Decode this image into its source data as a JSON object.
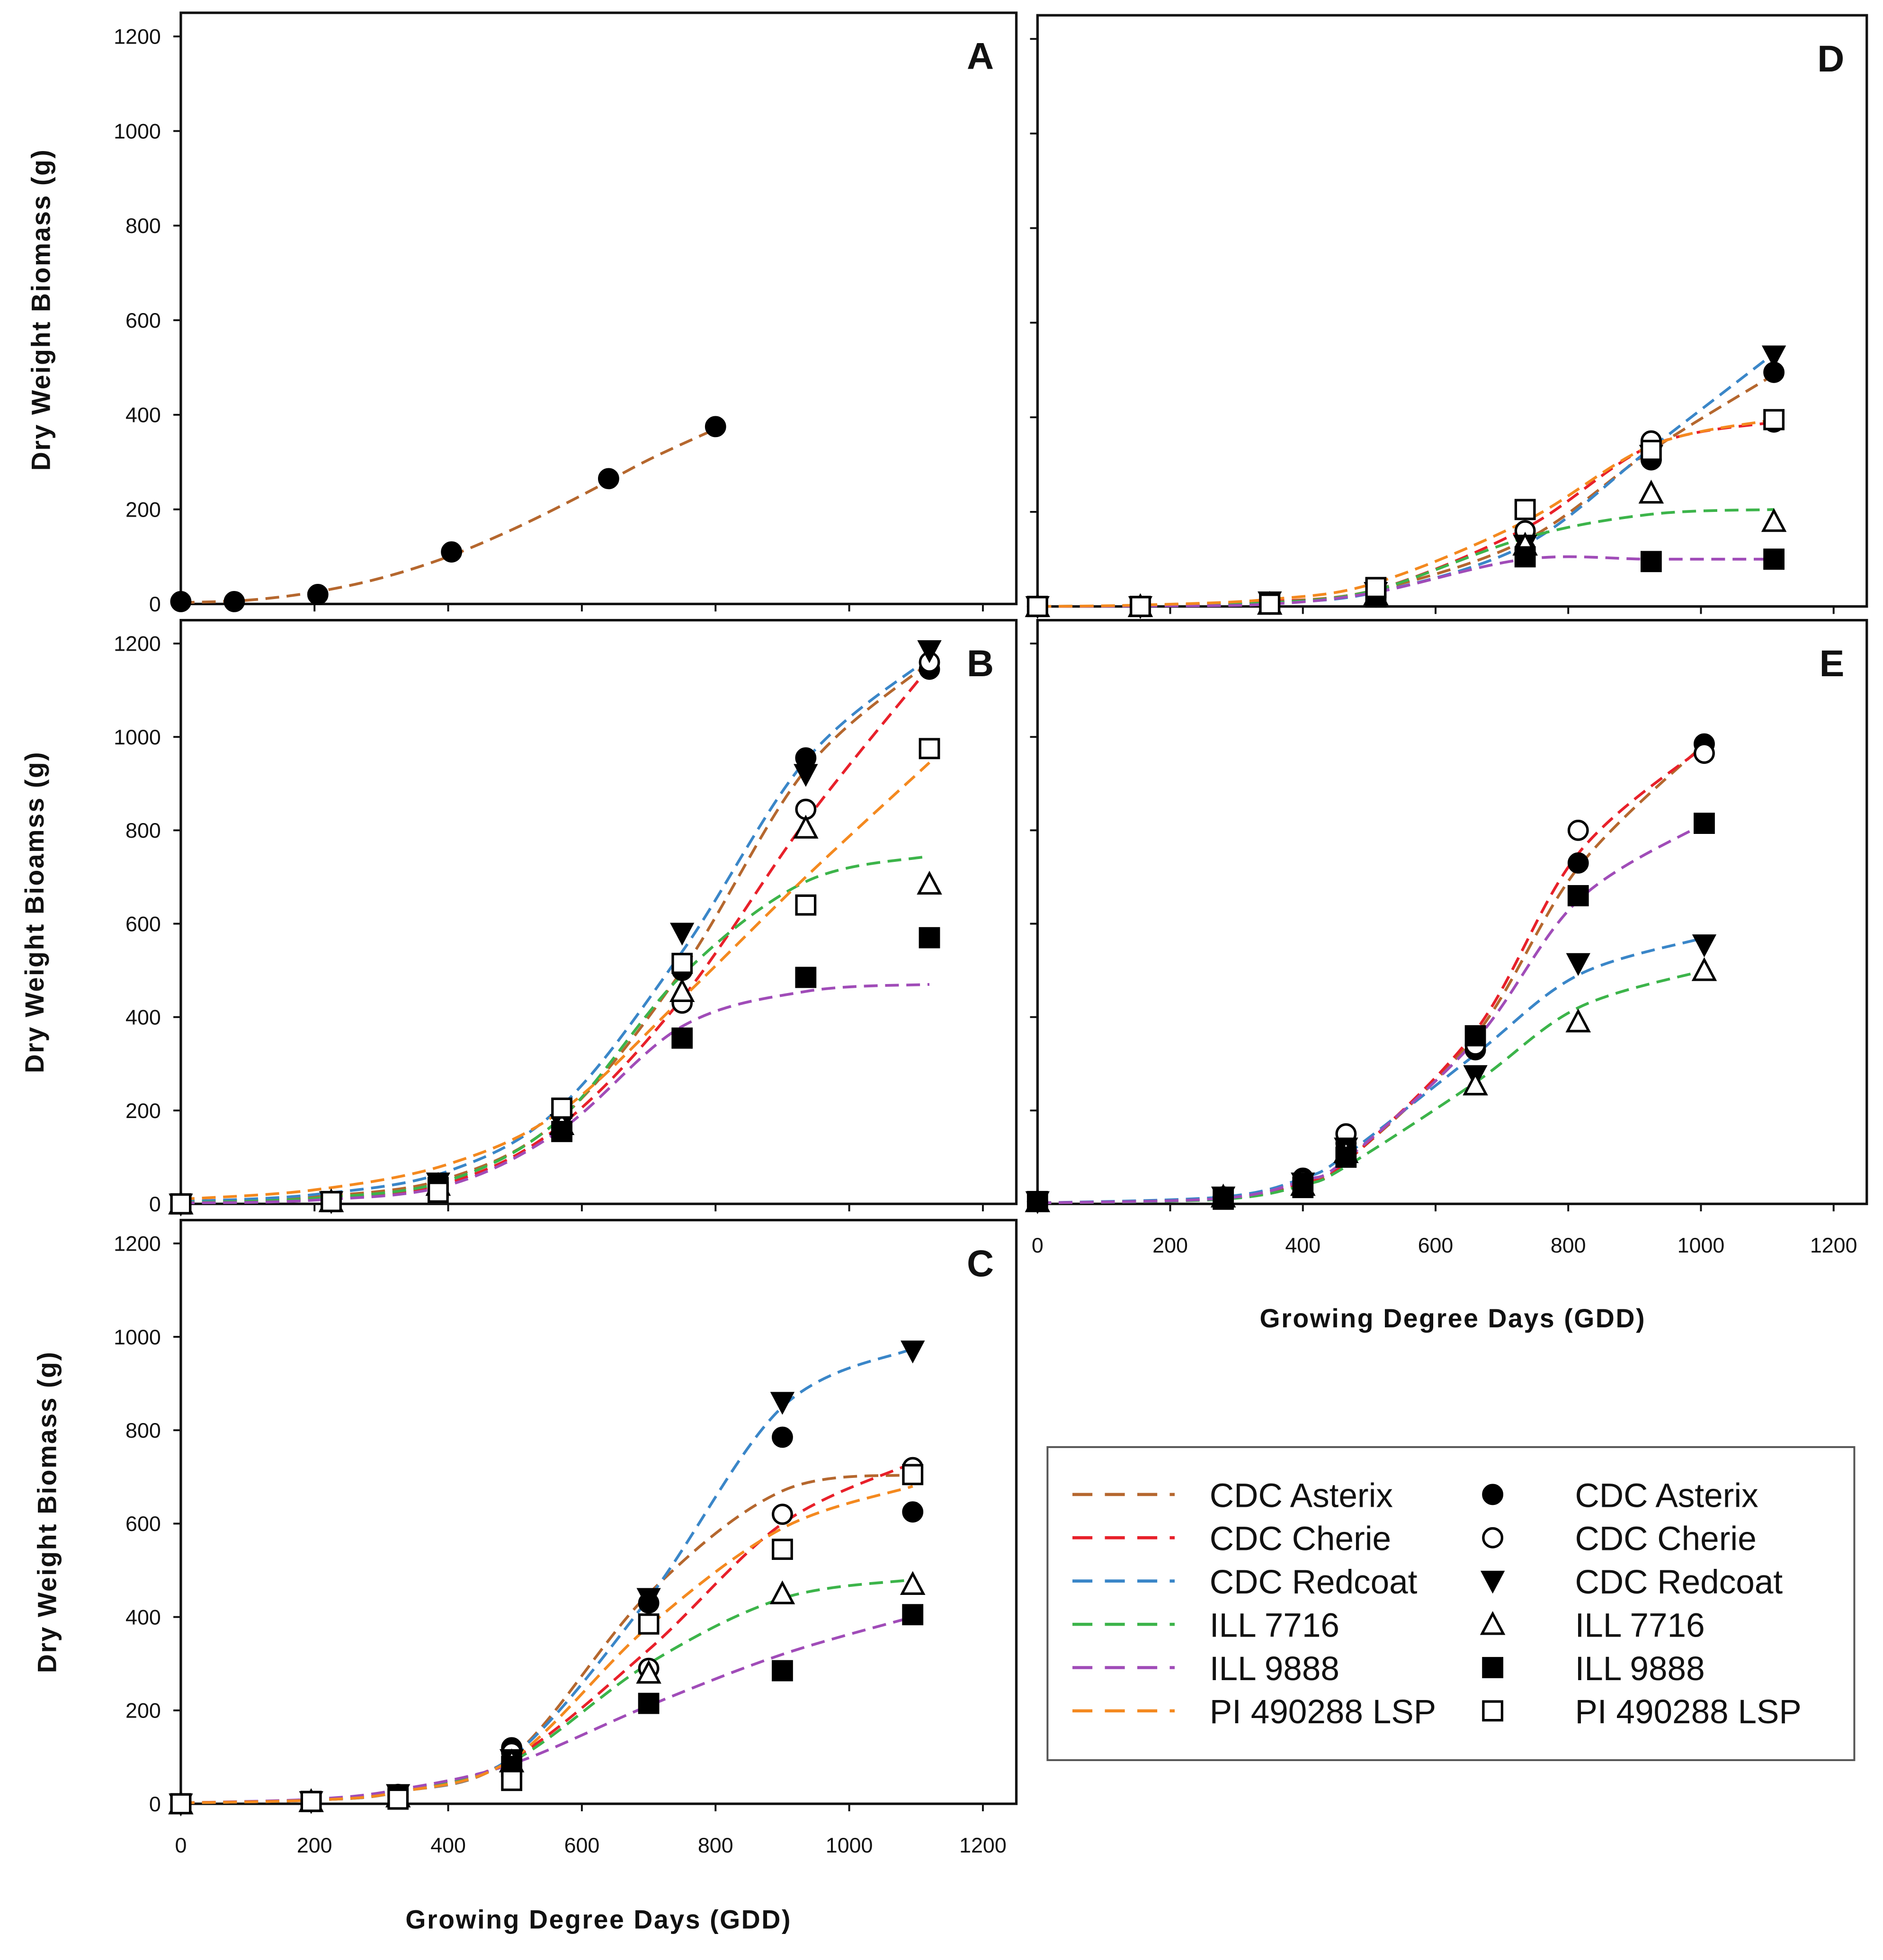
{
  "chart_data": {
    "type": "scatter",
    "title": "",
    "colors": {
      "CDC Asterix": "#b5672e",
      "CDC Cherie": "#e8202a",
      "CDC Redcoat": "#3a86c8",
      "ILL 7716": "#3cb44a",
      "ILL 9888": "#a04cb8",
      "PI 490288 LSP": "#f4891f"
    },
    "markers": {
      "CDC Asterix": "circle-filled",
      "CDC Cherie": "circle-open",
      "CDC Redcoat": "triangle-down-filled",
      "ILL 7716": "triangle-up-open",
      "ILL 9888": "square-filled",
      "PI 490288 LSP": "square-open"
    },
    "xlim": [
      0,
      1250
    ],
    "ylim": [
      0,
      1250
    ],
    "xticks": [
      0,
      200,
      400,
      600,
      800,
      1000,
      1200
    ],
    "yticks": [
      0,
      200,
      400,
      600,
      800,
      1000,
      1200
    ],
    "xlabel": "Growing Degree Days (GDD)",
    "ylabels": {
      "A": "Dry Weight Biomass (g)",
      "B": "Dry Weight Bioamss (g)",
      "C": "Dry Weight Biomass (g)"
    },
    "legend": {
      "position": "bottom-right",
      "line_entries": [
        "CDC Asterix",
        "CDC Cherie",
        "CDC Redcoat",
        "ILL 7716",
        "ILL 9888",
        "PI 490288 LSP"
      ],
      "marker_entries": [
        "CDC Asterix",
        "CDC Cherie",
        "CDC Redcoat",
        "ILL 7716",
        "ILL 9888",
        "PI 490288 LSP"
      ]
    },
    "panels": [
      {
        "label": "A",
        "x": [
          0,
          80,
          205,
          405,
          640,
          800
        ],
        "series": [
          {
            "name": "CDC Asterix",
            "points": [
              5,
              5,
              20,
              110,
              265,
              375
            ],
            "curve_x": [
              0,
              100,
              200,
              300,
              400,
              500,
              600,
              700,
              800
            ],
            "curve_y": [
              3,
              8,
              25,
              55,
              100,
              160,
              230,
              305,
              370
            ]
          }
        ]
      },
      {
        "label": "B",
        "x": [
          0,
          225,
          385,
          570,
          750,
          935,
          1120
        ],
        "curve_x": [
          0,
          200,
          400,
          570,
          750,
          935,
          1120
        ],
        "series": [
          {
            "name": "CDC Asterix",
            "points": [
              0,
              5,
              40,
              160,
              500,
              955,
              1145
            ],
            "curve_y": [
              5,
              15,
              55,
              185,
              500,
              930,
              1160
            ]
          },
          {
            "name": "CDC Cherie",
            "points": [
              0,
              5,
              40,
              165,
              430,
              845,
              1160
            ],
            "curve_y": [
              3,
              10,
              45,
              170,
              440,
              820,
              1150
            ]
          },
          {
            "name": "CDC Redcoat",
            "points": [
              0,
              5,
              45,
              170,
              580,
              920,
              1185
            ],
            "curve_y": [
              5,
              20,
              70,
              210,
              540,
              950,
              1170
            ]
          },
          {
            "name": "ILL 7716",
            "points": [
              0,
              5,
              40,
              170,
              455,
              805,
              685
            ],
            "curve_y": [
              3,
              12,
              50,
              185,
              490,
              690,
              745
            ]
          },
          {
            "name": "ILL 9888",
            "points": [
              0,
              5,
              35,
              155,
              355,
              485,
              570
            ],
            "curve_y": [
              2,
              8,
              40,
              160,
              380,
              455,
              470
            ]
          },
          {
            "name": "PI 490288 LSP",
            "points": [
              0,
              5,
              25,
              205,
              515,
              640,
              975
            ],
            "curve_y": [
              10,
              30,
              85,
              200,
              440,
              700,
              945
            ]
          }
        ]
      },
      {
        "label": "C",
        "x": [
          0,
          195,
          325,
          495,
          700,
          900,
          1095
        ],
        "curve_x": [
          0,
          200,
          325,
          495,
          700,
          900,
          1095
        ],
        "series": [
          {
            "name": "CDC Asterix",
            "points": [
              0,
              5,
              20,
              120,
              430,
              785,
              625
            ],
            "curve_y": [
              2,
              8,
              25,
              100,
              450,
              670,
              705
            ]
          },
          {
            "name": "CDC Cherie",
            "points": [
              0,
              5,
              15,
              110,
              290,
              620,
              720
            ],
            "curve_y": [
              2,
              8,
              25,
              95,
              330,
              600,
              730
            ]
          },
          {
            "name": "CDC Redcoat",
            "points": [
              0,
              5,
              20,
              95,
              440,
              860,
              970
            ],
            "curve_y": [
              2,
              8,
              25,
              100,
              440,
              850,
              975
            ]
          },
          {
            "name": "ILL 7716",
            "points": [
              0,
              5,
              15,
              90,
              280,
              450,
              470
            ],
            "curve_y": [
              2,
              8,
              25,
              90,
              300,
              440,
              480
            ]
          },
          {
            "name": "ILL 9888",
            "points": [
              0,
              5,
              15,
              80,
              215,
              285,
              405
            ],
            "curve_y": [
              2,
              10,
              30,
              85,
              210,
              320,
              400
            ]
          },
          {
            "name": "PI 490288 LSP",
            "points": [
              0,
              5,
              10,
              50,
              385,
              545,
              705
            ],
            "curve_y": [
              2,
              8,
              25,
              95,
              380,
              590,
              680
            ]
          }
        ]
      },
      {
        "label": "D",
        "x": [
          0,
          155,
          350,
          510,
          735,
          925,
          1110
        ],
        "curve_x": [
          0,
          155,
          350,
          510,
          735,
          925,
          1110
        ],
        "series": [
          {
            "name": "CDC Asterix",
            "points": [
              0,
              0,
              5,
              20,
              120,
              310,
              495
            ],
            "curve_y": [
              0,
              2,
              10,
              35,
              140,
              330,
              490
            ]
          },
          {
            "name": "CDC Cherie",
            "points": [
              0,
              0,
              5,
              25,
              160,
              350,
              390
            ],
            "curve_y": [
              0,
              2,
              10,
              35,
              165,
              340,
              390
            ]
          },
          {
            "name": "CDC Redcoat",
            "points": [
              0,
              0,
              10,
              30,
              130,
              320,
              530
            ],
            "curve_y": [
              0,
              2,
              8,
              30,
              130,
              335,
              535
            ]
          },
          {
            "name": "ILL 7716",
            "points": [
              0,
              0,
              5,
              25,
              130,
              240,
              180
            ],
            "curve_y": [
              0,
              2,
              8,
              35,
              145,
              195,
              205
            ]
          },
          {
            "name": "ILL 9888",
            "points": [
              0,
              0,
              5,
              20,
              105,
              95,
              100
            ],
            "curve_y": [
              0,
              1,
              5,
              30,
              100,
              100,
              100
            ]
          },
          {
            "name": "PI 490288 LSP",
            "points": [
              0,
              0,
              5,
              40,
              205,
              330,
              395
            ],
            "curve_y": [
              0,
              3,
              15,
              50,
              180,
              340,
              395
            ]
          }
        ]
      },
      {
        "label": "E",
        "x": [
          0,
          280,
          400,
          465,
          660,
          815,
          1005
        ],
        "curve_x": [
          0,
          280,
          400,
          465,
          660,
          815,
          1005
        ],
        "series": [
          {
            "name": "CDC Asterix",
            "points": [
              5,
              15,
              55,
              130,
              330,
              730,
              985
            ],
            "curve_y": [
              2,
              12,
              45,
              90,
              360,
              720,
              985
            ]
          },
          {
            "name": "CDC Cherie",
            "points": [
              5,
              15,
              50,
              150,
              340,
              800,
              965
            ],
            "curve_y": [
              2,
              12,
              45,
              90,
              370,
              750,
              980
            ]
          },
          {
            "name": "CDC Redcoat",
            "points": [
              5,
              15,
              45,
              120,
              275,
              515,
              555
            ],
            "curve_y": [
              2,
              15,
              55,
              105,
              320,
              490,
              570
            ]
          },
          {
            "name": "ILL 7716",
            "points": [
              5,
              15,
              40,
              110,
              255,
              390,
              500
            ],
            "curve_y": [
              2,
              10,
              40,
              80,
              260,
              420,
              500
            ]
          },
          {
            "name": "ILL 9888",
            "points": [
              5,
              10,
              35,
              100,
              360,
              660,
              815
            ],
            "curve_y": [
              2,
              12,
              50,
              95,
              350,
              650,
              815
            ]
          }
        ]
      }
    ]
  }
}
